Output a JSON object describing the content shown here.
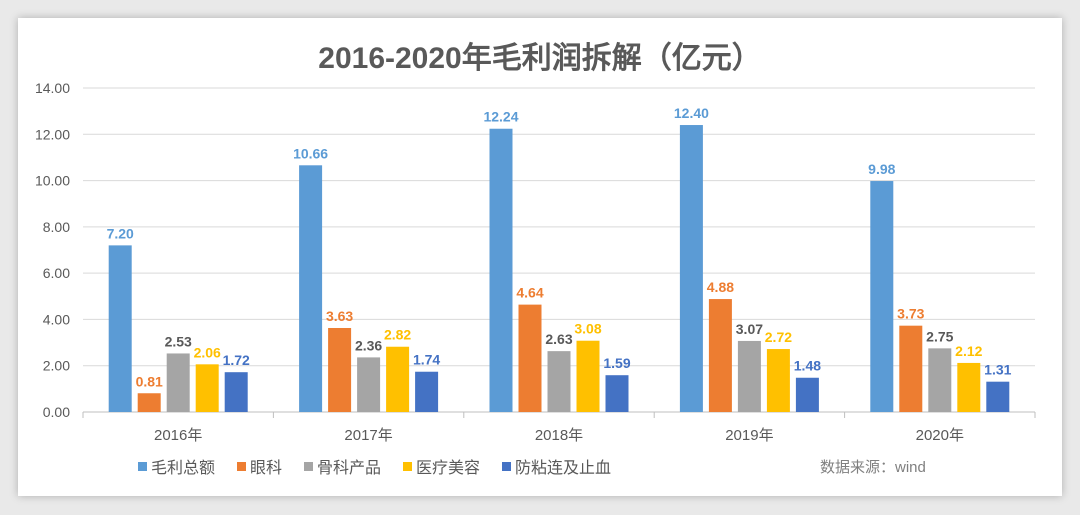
{
  "chart_data": {
    "type": "bar",
    "title": "2016-2020年毛利润拆解（亿元）",
    "categories": [
      "2016年",
      "2017年",
      "2018年",
      "2019年",
      "2020年"
    ],
    "series": [
      {
        "name": "毛利总额",
        "color": "#5B9BD5",
        "label_color": "#5B9BD5",
        "values": [
          7.2,
          10.66,
          12.24,
          12.4,
          9.98
        ]
      },
      {
        "name": "眼科",
        "color": "#ED7D31",
        "label_color": "#ED7D31",
        "values": [
          0.81,
          3.63,
          4.64,
          4.88,
          3.73
        ]
      },
      {
        "name": "骨科产品",
        "color": "#A5A5A5",
        "label_color": "#595959",
        "values": [
          2.53,
          2.36,
          2.63,
          3.07,
          2.75
        ]
      },
      {
        "name": "医疗美容",
        "color": "#FFC000",
        "label_color": "#FFC000",
        "values": [
          2.06,
          2.82,
          3.08,
          2.72,
          2.12
        ]
      },
      {
        "name": "防粘连及止血",
        "color": "#4472C4",
        "label_color": "#4472C4",
        "values": [
          1.72,
          1.74,
          1.59,
          1.48,
          1.31
        ]
      }
    ],
    "ylim": [
      0,
      14
    ],
    "yticks": [
      "0.00",
      "2.00",
      "4.00",
      "6.00",
      "8.00",
      "10.00",
      "12.00",
      "14.00"
    ],
    "grid": true,
    "legend_position": "bottom",
    "source_note": "数据来源：wind"
  }
}
